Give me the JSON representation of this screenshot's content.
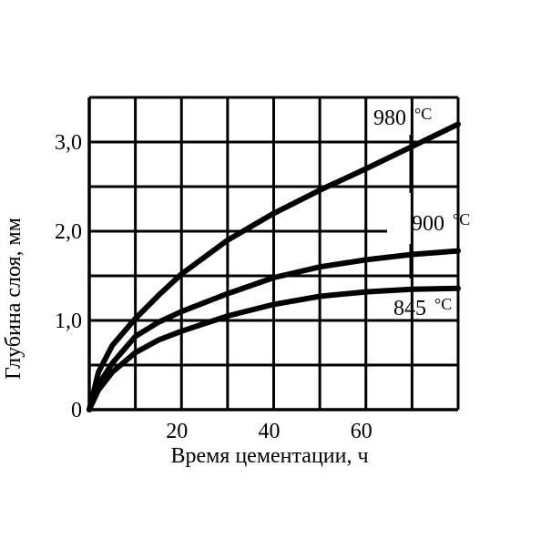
{
  "chart_data": {
    "type": "line",
    "xlabel": "Время цементации, ч",
    "ylabel": "Глубина слоя, мм",
    "xlim": [
      0,
      80
    ],
    "ylim": [
      0,
      3.0
    ],
    "grid": true,
    "x_ticks": [
      {
        "value": 20,
        "label": "20"
      },
      {
        "value": 40,
        "label": "40"
      },
      {
        "value": 60,
        "label": "60"
      }
    ],
    "y_ticks": [
      {
        "value": 0,
        "label": "0"
      },
      {
        "value": 1.0,
        "label": "1,0"
      },
      {
        "value": 2.0,
        "label": "2,0"
      },
      {
        "value": 3.0,
        "label": "3,0"
      }
    ],
    "series": [
      {
        "name": "980 °C",
        "label_main": "980",
        "label_unit": "°C",
        "values": [
          [
            0,
            0
          ],
          [
            2,
            0.42
          ],
          [
            5,
            0.72
          ],
          [
            10,
            1.02
          ],
          [
            15,
            1.28
          ],
          [
            20,
            1.52
          ],
          [
            30,
            1.9
          ],
          [
            40,
            2.2
          ],
          [
            50,
            2.46
          ],
          [
            60,
            2.7
          ],
          [
            70,
            2.95
          ],
          [
            80,
            3.2
          ]
        ]
      },
      {
        "name": "900 °C",
        "label_main": "900",
        "label_unit": "°C",
        "values": [
          [
            0,
            0
          ],
          [
            2,
            0.28
          ],
          [
            5,
            0.52
          ],
          [
            10,
            0.82
          ],
          [
            15,
            0.98
          ],
          [
            20,
            1.1
          ],
          [
            30,
            1.3
          ],
          [
            40,
            1.48
          ],
          [
            50,
            1.6
          ],
          [
            60,
            1.68
          ],
          [
            70,
            1.74
          ],
          [
            80,
            1.78
          ]
        ]
      },
      {
        "name": "845 °C",
        "label_main": "845",
        "label_unit": "°C",
        "values": [
          [
            0,
            0
          ],
          [
            2,
            0.22
          ],
          [
            5,
            0.42
          ],
          [
            10,
            0.64
          ],
          [
            15,
            0.78
          ],
          [
            20,
            0.88
          ],
          [
            30,
            1.05
          ],
          [
            40,
            1.18
          ],
          [
            50,
            1.27
          ],
          [
            60,
            1.32
          ],
          [
            70,
            1.35
          ],
          [
            80,
            1.36
          ]
        ]
      }
    ]
  }
}
